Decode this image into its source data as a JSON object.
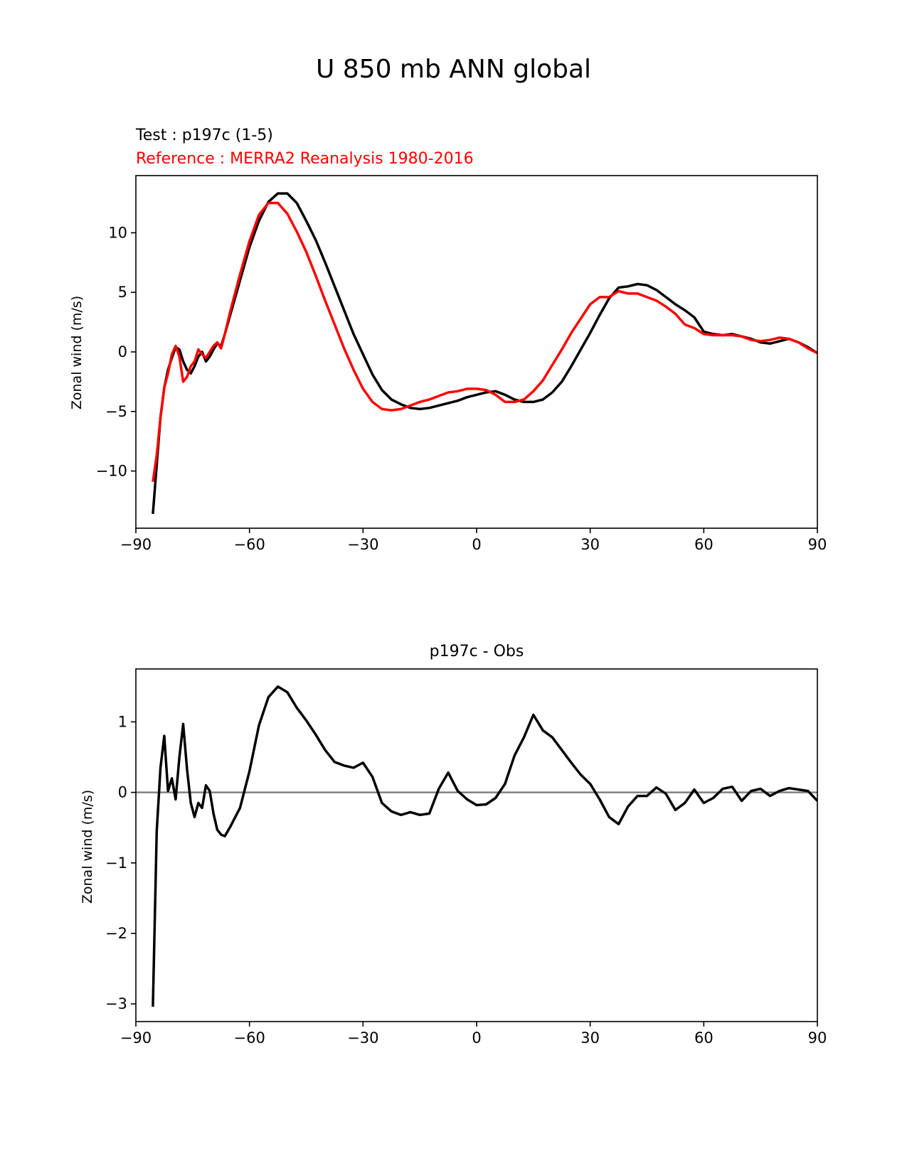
{
  "suptitle": "U 850 mb ANN global",
  "chart_data": [
    {
      "type": "line",
      "title_left_test": "Test : p197c (1-5)",
      "title_left_ref": "Reference : MERRA2 Reanalysis 1980-2016",
      "xlabel": "",
      "ylabel": "Zonal wind (m/s)",
      "xlim": [
        -90,
        90
      ],
      "ylim": [
        -14.8,
        14.8
      ],
      "xticks": [
        -90,
        -60,
        -30,
        0,
        30,
        60,
        90
      ],
      "xtick_labels": [
        "−90",
        "−60",
        "−30",
        "0",
        "30",
        "60",
        "90"
      ],
      "yticks": [
        -10,
        -5,
        0,
        5,
        10
      ],
      "ytick_labels": [
        "−10",
        "−5",
        "0",
        "5",
        "10"
      ],
      "series": [
        {
          "name": "Test : p197c (1-5)",
          "color": "#000000",
          "x": [
            -85.5,
            -84.5,
            -83.5,
            -82.5,
            -81.5,
            -80.5,
            -79.5,
            -78.5,
            -77.5,
            -76.5,
            -75.5,
            -74.5,
            -73.5,
            -72.5,
            -71.5,
            -70.5,
            -69.5,
            -68.5,
            -67.5,
            -66.5,
            -65,
            -62.5,
            -60,
            -57.5,
            -55,
            -52.5,
            -50,
            -47.5,
            -45,
            -42.5,
            -40,
            -37.5,
            -35,
            -32.5,
            -30,
            -27.5,
            -25,
            -22.5,
            -20,
            -17.5,
            -15,
            -12.5,
            -10,
            -7.5,
            -5,
            -2.5,
            0,
            2.5,
            5,
            7.5,
            10,
            12.5,
            15,
            17.5,
            20,
            22.5,
            25,
            27.5,
            30,
            32.5,
            35,
            37.5,
            40,
            42.5,
            45,
            47.5,
            50,
            52.5,
            55,
            57.5,
            60,
            62.5,
            65,
            67.5,
            70,
            72.5,
            75,
            77.5,
            80,
            82.5,
            85,
            87.5,
            90
          ],
          "y": [
            -13.6,
            -9.5,
            -5.5,
            -3,
            -1.5,
            -0.5,
            0.4,
            0.2,
            -0.8,
            -1.5,
            -1.8,
            -1.2,
            -0.4,
            0,
            -0.8,
            -0.4,
            0.2,
            0.7,
            0.5,
            1.5,
            3.2,
            6,
            8.8,
            11,
            12.6,
            13.3,
            13.3,
            12.5,
            11,
            9.4,
            7.5,
            5.5,
            3.5,
            1.5,
            -0.2,
            -1.9,
            -3.2,
            -4,
            -4.4,
            -4.7,
            -4.8,
            -4.7,
            -4.5,
            -4.3,
            -4.1,
            -3.8,
            -3.6,
            -3.4,
            -3.3,
            -3.6,
            -4,
            -4.2,
            -4.2,
            -4,
            -3.4,
            -2.5,
            -1.2,
            0.2,
            1.6,
            3.1,
            4.5,
            5.4,
            5.5,
            5.7,
            5.6,
            5.2,
            4.6,
            4,
            3.5,
            2.9,
            1.7,
            1.5,
            1.4,
            1.5,
            1.3,
            1.1,
            0.8,
            0.7,
            0.9,
            1.1,
            0.8,
            0.4,
            -0.1
          ]
        },
        {
          "name": "Reference : MERRA2 Reanalysis 1980-2016",
          "color": "#ff0000",
          "x": [
            -85.5,
            -84.5,
            -83.5,
            -82.5,
            -81.5,
            -80.5,
            -79.5,
            -78.5,
            -77.5,
            -76.5,
            -75.5,
            -74.5,
            -73.5,
            -72.5,
            -71.5,
            -70.5,
            -69.5,
            -68.5,
            -67.5,
            -66.5,
            -65,
            -62.5,
            -60,
            -57.5,
            -55,
            -52.5,
            -50,
            -47.5,
            -45,
            -42.5,
            -40,
            -37.5,
            -35,
            -32.5,
            -30,
            -27.5,
            -25,
            -22.5,
            -20,
            -17.5,
            -15,
            -12.5,
            -10,
            -7.5,
            -5,
            -2.5,
            0,
            2.5,
            5,
            7.5,
            10,
            12.5,
            15,
            17.5,
            20,
            22.5,
            25,
            27.5,
            30,
            32.5,
            35,
            37.5,
            40,
            42.5,
            45,
            47.5,
            50,
            52.5,
            55,
            57.5,
            60,
            62.5,
            65,
            67.5,
            70,
            72.5,
            75,
            77.5,
            80,
            82.5,
            85,
            87.5,
            90
          ],
          "y": [
            -10.9,
            -8.7,
            -5.5,
            -3,
            -1.8,
            -0.2,
            0.5,
            -0.4,
            -2.5,
            -2.1,
            -1.2,
            -0.8,
            0.2,
            -0.2,
            -0.5,
            0,
            0.5,
            0.8,
            0.3,
            1.5,
            3.5,
            6.5,
            9.3,
            11.5,
            12.5,
            12.5,
            11.6,
            10.1,
            8.4,
            6.4,
            4.3,
            2.3,
            0.3,
            -1.5,
            -3.1,
            -4.2,
            -4.8,
            -4.9,
            -4.8,
            -4.5,
            -4.2,
            -4,
            -3.7,
            -3.4,
            -3.3,
            -3.1,
            -3.1,
            -3.2,
            -3.6,
            -4.2,
            -4.2,
            -4,
            -3.3,
            -2.4,
            -1.1,
            0.2,
            1.6,
            2.8,
            4,
            4.6,
            4.6,
            5.1,
            4.9,
            4.9,
            4.6,
            4.3,
            3.8,
            3.2,
            2.3,
            2,
            1.5,
            1.4,
            1.4,
            1.4,
            1.3,
            1,
            0.9,
            1,
            1.2,
            1.1,
            0.8,
            0.3,
            -0.1
          ]
        }
      ]
    },
    {
      "type": "line",
      "title": "p197c - Obs",
      "xlabel": "",
      "ylabel": "Zonal wind (m/s)",
      "xlim": [
        -90,
        90
      ],
      "ylim": [
        -3.25,
        1.75
      ],
      "xticks": [
        -90,
        -60,
        -30,
        0,
        30,
        60,
        90
      ],
      "xtick_labels": [
        "−90",
        "−60",
        "−30",
        "0",
        "30",
        "60",
        "90"
      ],
      "yticks": [
        -3,
        -2,
        -1,
        0,
        1
      ],
      "ytick_labels": [
        "−3",
        "−2",
        "−1",
        "0",
        "1"
      ],
      "zero_line_color": "#808080",
      "series": [
        {
          "name": "p197c - Obs",
          "color": "#000000",
          "x": [
            -85.5,
            -84.5,
            -83.5,
            -82.5,
            -81.5,
            -80.5,
            -79.5,
            -78.5,
            -77.5,
            -76.5,
            -75.5,
            -74.5,
            -73.5,
            -72.5,
            -71.5,
            -70.5,
            -69.5,
            -68.5,
            -67.5,
            -66.5,
            -65,
            -62.5,
            -60,
            -57.5,
            -55,
            -52.5,
            -50,
            -47.5,
            -45,
            -42.5,
            -40,
            -37.5,
            -35,
            -32.5,
            -30,
            -27.5,
            -25,
            -22.5,
            -20,
            -17.5,
            -15,
            -12.5,
            -10,
            -7.5,
            -5,
            -2.5,
            0,
            2.5,
            5,
            7.5,
            10,
            12.5,
            15,
            17.5,
            20,
            22.5,
            25,
            27.5,
            30,
            32.5,
            35,
            37.5,
            40,
            42.5,
            45,
            47.5,
            50,
            52.5,
            55,
            57.5,
            60,
            62.5,
            65,
            67.5,
            70,
            72.5,
            75,
            77.5,
            80,
            82.5,
            85,
            87.5,
            90
          ],
          "y": [
            -3.04,
            -0.55,
            0.35,
            0.8,
            0.02,
            0.2,
            -0.1,
            0.5,
            0.97,
            0.33,
            -0.15,
            -0.35,
            -0.15,
            -0.22,
            0.1,
            0.02,
            -0.3,
            -0.53,
            -0.6,
            -0.62,
            -0.48,
            -0.22,
            0.3,
            0.95,
            1.35,
            1.5,
            1.42,
            1.2,
            1.02,
            0.82,
            0.6,
            0.43,
            0.38,
            0.35,
            0.42,
            0.22,
            -0.15,
            -0.27,
            -0.32,
            -0.28,
            -0.32,
            -0.3,
            0.05,
            0.28,
            0.02,
            -0.1,
            -0.18,
            -0.17,
            -0.08,
            0.12,
            0.52,
            0.78,
            1.1,
            0.88,
            0.78,
            0.6,
            0.42,
            0.25,
            0.12,
            -0.1,
            -0.35,
            -0.45,
            -0.2,
            -0.05,
            -0.05,
            0.07,
            -0.02,
            -0.25,
            -0.15,
            0.04,
            -0.15,
            -0.08,
            0.05,
            0.08,
            -0.12,
            0.02,
            0.05,
            -0.05,
            0.02,
            0.06,
            0.04,
            0.02,
            -0.12
          ]
        }
      ]
    }
  ]
}
